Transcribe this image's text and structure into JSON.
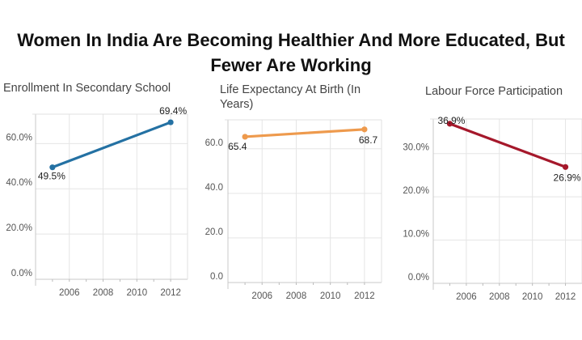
{
  "title": "Women In India Are Becoming Healthier And More Educated, But Fewer Are Working",
  "colors": {
    "blue": "#2471a3",
    "orange": "#ee9a4d",
    "red": "#a5182b",
    "grid": "#e5e5e5"
  },
  "chart_data": [
    {
      "type": "line",
      "title": "Enrollment In Secondary School",
      "x": [
        2005,
        2012
      ],
      "values": [
        49.5,
        69.4
      ],
      "value_labels": [
        "49.5%",
        "69.4%"
      ],
      "yticks": [
        "0.0%",
        "20.0%",
        "40.0%",
        "60.0%"
      ],
      "ytick_values": [
        0,
        20,
        40,
        60
      ],
      "xticks": [
        "2006",
        "2008",
        "2010",
        "2012"
      ],
      "xtick_values": [
        2006,
        2008,
        2010,
        2012
      ],
      "xlim": [
        2004,
        2013
      ],
      "ylim": [
        0,
        73
      ],
      "color": "#2471a3",
      "grid": true
    },
    {
      "type": "line",
      "title": "Life Expectancy At Birth (In Years)",
      "x": [
        2005,
        2012
      ],
      "values": [
        65.4,
        68.7
      ],
      "value_labels": [
        "65.4",
        "68.7"
      ],
      "yticks": [
        "0.0",
        "20.0",
        "40.0",
        "60.0"
      ],
      "ytick_values": [
        0,
        20,
        40,
        60
      ],
      "xticks": [
        "2006",
        "2008",
        "2010",
        "2012"
      ],
      "xtick_values": [
        2006,
        2008,
        2010,
        2012
      ],
      "xlim": [
        2004,
        2013
      ],
      "ylim": [
        0,
        73
      ],
      "color": "#ee9a4d",
      "grid": true
    },
    {
      "type": "line",
      "title": "Labour Force Participation",
      "x": [
        2005,
        2012
      ],
      "values": [
        36.9,
        26.9
      ],
      "value_labels": [
        "36.9%",
        "26.9%"
      ],
      "yticks": [
        "0.0%",
        "10.0%",
        "20.0%",
        "30.0%"
      ],
      "ytick_values": [
        0,
        10,
        20,
        30
      ],
      "xticks": [
        "2006",
        "2008",
        "2010",
        "2012"
      ],
      "xtick_values": [
        2006,
        2008,
        2010,
        2012
      ],
      "xlim": [
        2004,
        2013
      ],
      "ylim": [
        0,
        38
      ],
      "color": "#a5182b",
      "grid": true
    }
  ]
}
